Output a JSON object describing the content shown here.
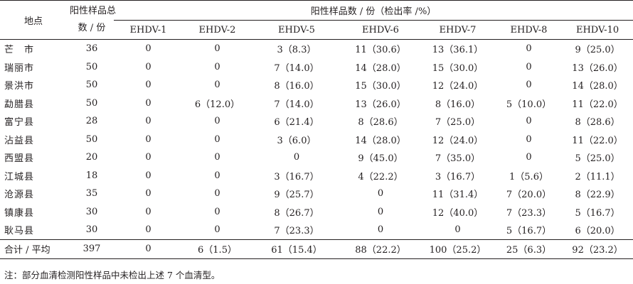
{
  "header": {
    "location": "地点",
    "count_line1": "阳性样品总",
    "count_line2": "数 / 份",
    "group": "阳性样品数 / 份（检出率 /%）",
    "serotypes": [
      "EHDV-1",
      "EHDV-2",
      "EHDV-5",
      "EHDV-6",
      "EHDV-7",
      "EHDV-8",
      "EHDV-10"
    ]
  },
  "rows": [
    {
      "loc": "芒　市",
      "total": "36",
      "v": [
        "0",
        "0",
        "3（8.3）",
        "11（30.6）",
        "13（36.1）",
        "0",
        "9（25.0）"
      ]
    },
    {
      "loc": "瑞丽市",
      "total": "50",
      "v": [
        "0",
        "0",
        "7（14.0）",
        "14（28.0）",
        "15（30.0）",
        "0",
        "13（26.0）"
      ]
    },
    {
      "loc": "景洪市",
      "total": "50",
      "v": [
        "0",
        "0",
        "8（16.0）",
        "15（30.0）",
        "12（24.0）",
        "0",
        "14（28.0）"
      ]
    },
    {
      "loc": "勐腊县",
      "total": "50",
      "v": [
        "0",
        "6（12.0）",
        "7（14.0）",
        "13（26.0）",
        "8（16.0）",
        "5（10.0）",
        "11（22.0）"
      ]
    },
    {
      "loc": "富宁县",
      "total": "28",
      "v": [
        "0",
        "0",
        "6（21.4）",
        "8（28.6）",
        "7（25.0）",
        "0",
        "8（28.6）"
      ]
    },
    {
      "loc": "沾益县",
      "total": "50",
      "v": [
        "0",
        "0",
        "3（6.0）",
        "14（28.0）",
        "12（24.0）",
        "0",
        "11（22.0）"
      ]
    },
    {
      "loc": "西盟县",
      "total": "20",
      "v": [
        "0",
        "0",
        "0",
        "9（45.0）",
        "7（35.0）",
        "0",
        "5（25.0）"
      ]
    },
    {
      "loc": "江城县",
      "total": "18",
      "v": [
        "0",
        "0",
        "3（16.7）",
        "4（22.2）",
        "3（16.7）",
        "1（5.6）",
        "2（11.1）"
      ]
    },
    {
      "loc": "沧源县",
      "total": "35",
      "v": [
        "0",
        "0",
        "9（25.7）",
        "0",
        "11（31.4）",
        "7（20.0）",
        "8（22.9）"
      ]
    },
    {
      "loc": "镇康县",
      "total": "30",
      "v": [
        "0",
        "0",
        "8（26.7）",
        "0",
        "12（40.0）",
        "7（23.3）",
        "5（16.7）"
      ]
    },
    {
      "loc": "耿马县",
      "total": "30",
      "v": [
        "0",
        "0",
        "7（23.3）",
        "0",
        "0",
        "5（16.7）",
        "6（20.0）"
      ]
    }
  ],
  "total_row": {
    "loc": "合计 / 平均",
    "total": "397",
    "v": [
      "0",
      "6（1.5）",
      "61（15.4）",
      "88（22.2）",
      "100（25.2）",
      "25（6.3）",
      "92（23.2）"
    ]
  },
  "note": "注：部分血清检测阳性样品中未检出上述 7 个血清型。"
}
